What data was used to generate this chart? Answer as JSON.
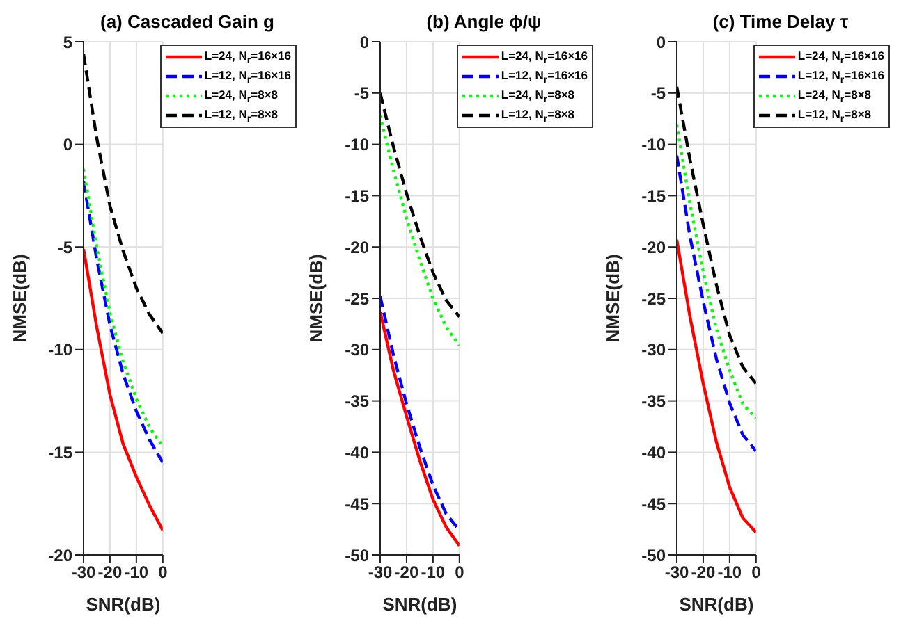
{
  "chart_data": [
    {
      "type": "line",
      "title": "(a) Cascaded Gain g",
      "xlabel": "SNR(dB)",
      "ylabel": "NMSE(dB)",
      "x": [
        -30,
        -25,
        -20,
        -15,
        -10,
        -5,
        0
      ],
      "xlim": [
        -30,
        0
      ],
      "xticks": [
        -30,
        -20,
        -10,
        0
      ],
      "ylim": [
        -20,
        5
      ],
      "yticks": [
        -20,
        -15,
        -10,
        -5,
        0,
        5
      ],
      "grid": true,
      "legend": "top right",
      "marker": "none",
      "series": [
        {
          "name": "L=24, N$_{r}$=16×16",
          "color": "#ff0000",
          "line_style": "solid",
          "values": [
            -5.1,
            -8.9,
            -12.2,
            -14.6,
            -16.2,
            -17.6,
            -18.8
          ]
        },
        {
          "name": "L=12, N$_{r}$=16×16",
          "color": "#0000ff",
          "line_style": "dashed",
          "values": [
            -1.8,
            -5.6,
            -8.8,
            -11.2,
            -13.0,
            -14.4,
            -15.5
          ]
        },
        {
          "name": "L=24, N$_{r}$=8×8",
          "color": "#00ff00",
          "line_style": "dotted",
          "values": [
            -1.2,
            -5.0,
            -8.2,
            -10.6,
            -12.4,
            -13.8,
            -14.7
          ]
        },
        {
          "name": "L=12, N$_{r}$=8×8",
          "color": "#000000",
          "line_style": "dashed",
          "values": [
            4.4,
            0.3,
            -3.0,
            -5.2,
            -7.0,
            -8.3,
            -9.2
          ]
        }
      ]
    },
    {
      "type": "line",
      "title": "(b) Angle ϕ/ψ",
      "xlabel": "SNR(dB)",
      "ylabel": "NMSE(dB)",
      "x": [
        -30,
        -25,
        -20,
        -15,
        -10,
        -5,
        0
      ],
      "xlim": [
        -30,
        0
      ],
      "xticks": [
        -30,
        -20,
        -10,
        0
      ],
      "ylim": [
        -50,
        0
      ],
      "yticks": [
        -50,
        -45,
        -40,
        -35,
        -30,
        -25,
        -20,
        -15,
        -10,
        -5,
        0
      ],
      "grid": true,
      "legend": "top right",
      "marker": "none",
      "series": [
        {
          "name": "L=24, N$_{r}$=16×16",
          "color": "#ff0000",
          "line_style": "solid",
          "values": [
            -26.3,
            -32.0,
            -36.5,
            -40.8,
            -44.6,
            -47.3,
            -49.1
          ]
        },
        {
          "name": "L=12, N$_{r}$=16×16",
          "color": "#0000ff",
          "line_style": "dashed",
          "values": [
            -24.8,
            -30.5,
            -35.3,
            -39.5,
            -43.2,
            -46.0,
            -47.6
          ]
        },
        {
          "name": "L=24, N$_{r}$=8×8",
          "color": "#00ff00",
          "line_style": "dotted",
          "values": [
            -7.2,
            -12.5,
            -17.2,
            -21.3,
            -25.0,
            -27.8,
            -29.6
          ]
        },
        {
          "name": "L=12, N$_{r}$=8×8",
          "color": "#000000",
          "line_style": "dashed",
          "values": [
            -5.0,
            -10.2,
            -14.8,
            -18.9,
            -22.5,
            -25.2,
            -26.8
          ]
        }
      ]
    },
    {
      "type": "line",
      "title": "(c) Time Delay τ",
      "xlabel": "SNR(dB)",
      "ylabel": "NMSE(dB)",
      "x": [
        -30,
        -25,
        -20,
        -15,
        -10,
        -5,
        0
      ],
      "xlim": [
        -30,
        0
      ],
      "xticks": [
        -30,
        -20,
        -10,
        0
      ],
      "ylim": [
        -50,
        0
      ],
      "yticks": [
        -50,
        -45,
        -40,
        -35,
        -30,
        -25,
        -20,
        -15,
        -10,
        -5,
        0
      ],
      "grid": true,
      "legend": "top right",
      "marker": "none",
      "series": [
        {
          "name": "L=24, N$_{r}$=16×16",
          "color": "#ff0000",
          "line_style": "solid",
          "values": [
            -19.3,
            -26.8,
            -33.3,
            -39.0,
            -43.4,
            -46.4,
            -47.8
          ]
        },
        {
          "name": "L=12, N$_{r}$=16×16",
          "color": "#0000ff",
          "line_style": "dashed",
          "values": [
            -11.1,
            -19.0,
            -25.3,
            -30.9,
            -35.2,
            -38.3,
            -39.9
          ]
        },
        {
          "name": "L=24, N$_{r}$=8×8",
          "color": "#00ff00",
          "line_style": "dotted",
          "values": [
            -8.1,
            -15.8,
            -22.4,
            -28.0,
            -32.0,
            -35.3,
            -36.7
          ]
        },
        {
          "name": "L=12, N$_{r}$=8×8",
          "color": "#000000",
          "line_style": "dashed",
          "values": [
            -4.4,
            -11.5,
            -17.8,
            -23.7,
            -28.6,
            -31.7,
            -33.3
          ]
        }
      ]
    }
  ]
}
